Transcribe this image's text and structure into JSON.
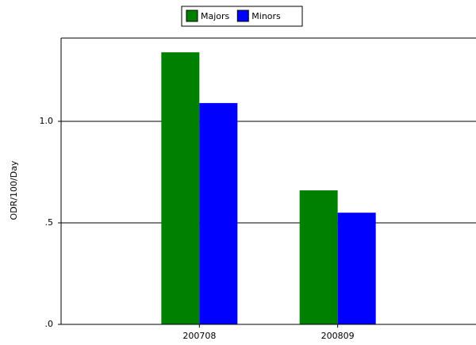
{
  "chart_data": {
    "type": "bar",
    "y_label": "ODR/100/Day",
    "categories": [
      "200708",
      "200809"
    ],
    "series": [
      {
        "name": "Majors",
        "color": "#008000",
        "values": [
          1.34,
          0.66
        ]
      },
      {
        "name": "Minors",
        "color": "#0000ff",
        "values": [
          1.09,
          0.55
        ]
      }
    ],
    "ylim": [
      0,
      1.41
    ],
    "yticks": [
      {
        "value": 0,
        "label": ".0"
      },
      {
        "value": 0.5,
        "label": ".5"
      },
      {
        "value": 1.0,
        "label": "1.0"
      }
    ],
    "grid": true
  }
}
